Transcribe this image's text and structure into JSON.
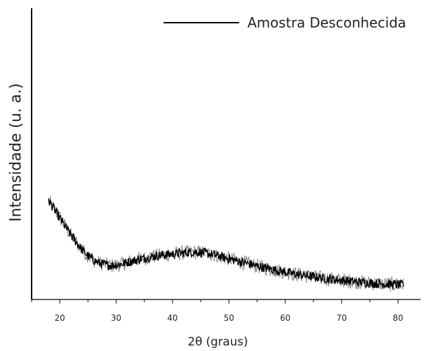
{
  "chart_data": {
    "type": "line",
    "title": "",
    "xlabel": "2θ (graus)",
    "ylabel": "Intensidade (u. a.)",
    "xlim": [
      15,
      84
    ],
    "ylim": [
      0,
      100
    ],
    "xticks": [
      20,
      30,
      40,
      50,
      60,
      70,
      80
    ],
    "grid": false,
    "legend_position": "top-right",
    "series": [
      {
        "name": "Amostra Desconhecida",
        "color": "#000000",
        "x": [
          18,
          19,
          20,
          21,
          22,
          23,
          24,
          25,
          26,
          27,
          28,
          29,
          30,
          31,
          32,
          33,
          34,
          35,
          36,
          37,
          38,
          39,
          40,
          41,
          42,
          43,
          44,
          45,
          46,
          47,
          48,
          49,
          50,
          51,
          52,
          53,
          54,
          55,
          56,
          57,
          58,
          59,
          60,
          61,
          62,
          63,
          64,
          65,
          66,
          67,
          68,
          69,
          70,
          71,
          72,
          73,
          74,
          75,
          76,
          77,
          78,
          79,
          80,
          81
        ],
        "y": [
          34,
          31,
          28,
          25,
          22,
          19.5,
          17,
          15,
          13.5,
          12.5,
          12,
          11.7,
          11.8,
          12.2,
          12.8,
          13.3,
          13.8,
          14.2,
          14.6,
          14.9,
          15.2,
          15.4,
          15.6,
          15.8,
          16,
          16.2,
          16.3,
          16.2,
          15.9,
          15.5,
          15,
          14.5,
          14,
          13.5,
          13,
          12.5,
          12,
          11.5,
          11,
          10.6,
          10.2,
          9.8,
          9.4,
          9,
          8.7,
          8.4,
          8.1,
          7.8,
          7.5,
          7.2,
          7,
          6.8,
          6.6,
          6.4,
          6.2,
          6,
          5.8,
          5.7,
          5.5,
          5.4,
          5.3,
          5.2,
          5.1,
          5
        ]
      }
    ]
  }
}
